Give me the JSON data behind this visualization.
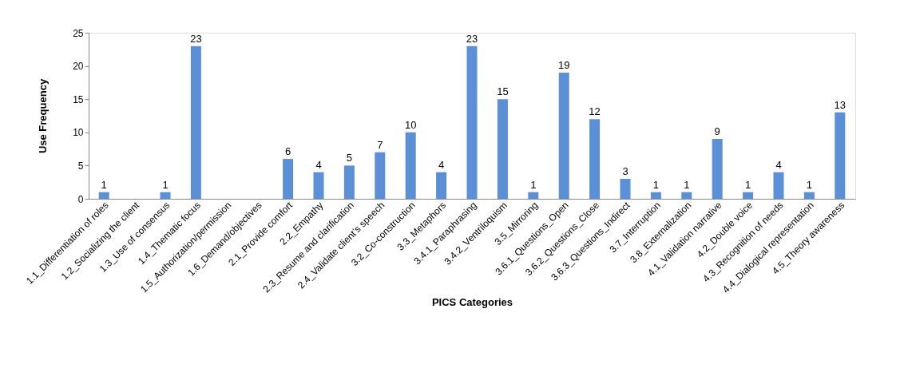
{
  "chart_data": {
    "type": "bar",
    "xlabel": "PICS Categories",
    "ylabel": "Use Frequency",
    "categories": [
      "1.1_Differentiation of roles",
      "1.2_Socializing the client",
      "1.3_Use of consensus",
      "1.4_Thematic focus",
      "1.5_Authorization/permission",
      "1.6_Demand/objectives",
      "2.1_Provide comfort",
      "2.2_Empathy",
      "2.3_Resume and clarification",
      "2.4_Validate client’s speech",
      "3.2_Co-construction",
      "3.3_Metaphors",
      "3.4.1_Paraphrasing",
      "3.4.2_Ventriloquism",
      "3.5_Mirroring",
      "3.6.1_Questions_Open",
      "3.6.2_Questions_Close",
      "3.6.3_Questions_Indirect",
      "3.7_Interruption",
      "3.8_Externalization",
      "4.1_Validation narrative",
      "4.2_Double voice",
      "4.3_Recognition of needs",
      "4.4_Dialogical representation",
      "4.5_Theory awareness"
    ],
    "values": [
      1,
      0,
      1,
      23,
      0,
      0,
      6,
      4,
      5,
      7,
      10,
      4,
      23,
      15,
      1,
      19,
      12,
      3,
      1,
      1,
      9,
      1,
      4,
      1,
      13
    ],
    "value_labels": [
      "1",
      null,
      "1",
      "23",
      null,
      null,
      "6",
      "4",
      "5",
      "7",
      "10",
      "4",
      "23",
      "15",
      "1",
      "19",
      "12",
      "3",
      "1",
      "1",
      "9",
      "1",
      "4",
      "1",
      "13"
    ],
    "color": "#5b8fd6",
    "ylim": [
      0,
      25
    ],
    "yticks": [
      0,
      5,
      10,
      15,
      20,
      25
    ],
    "grid": false
  }
}
